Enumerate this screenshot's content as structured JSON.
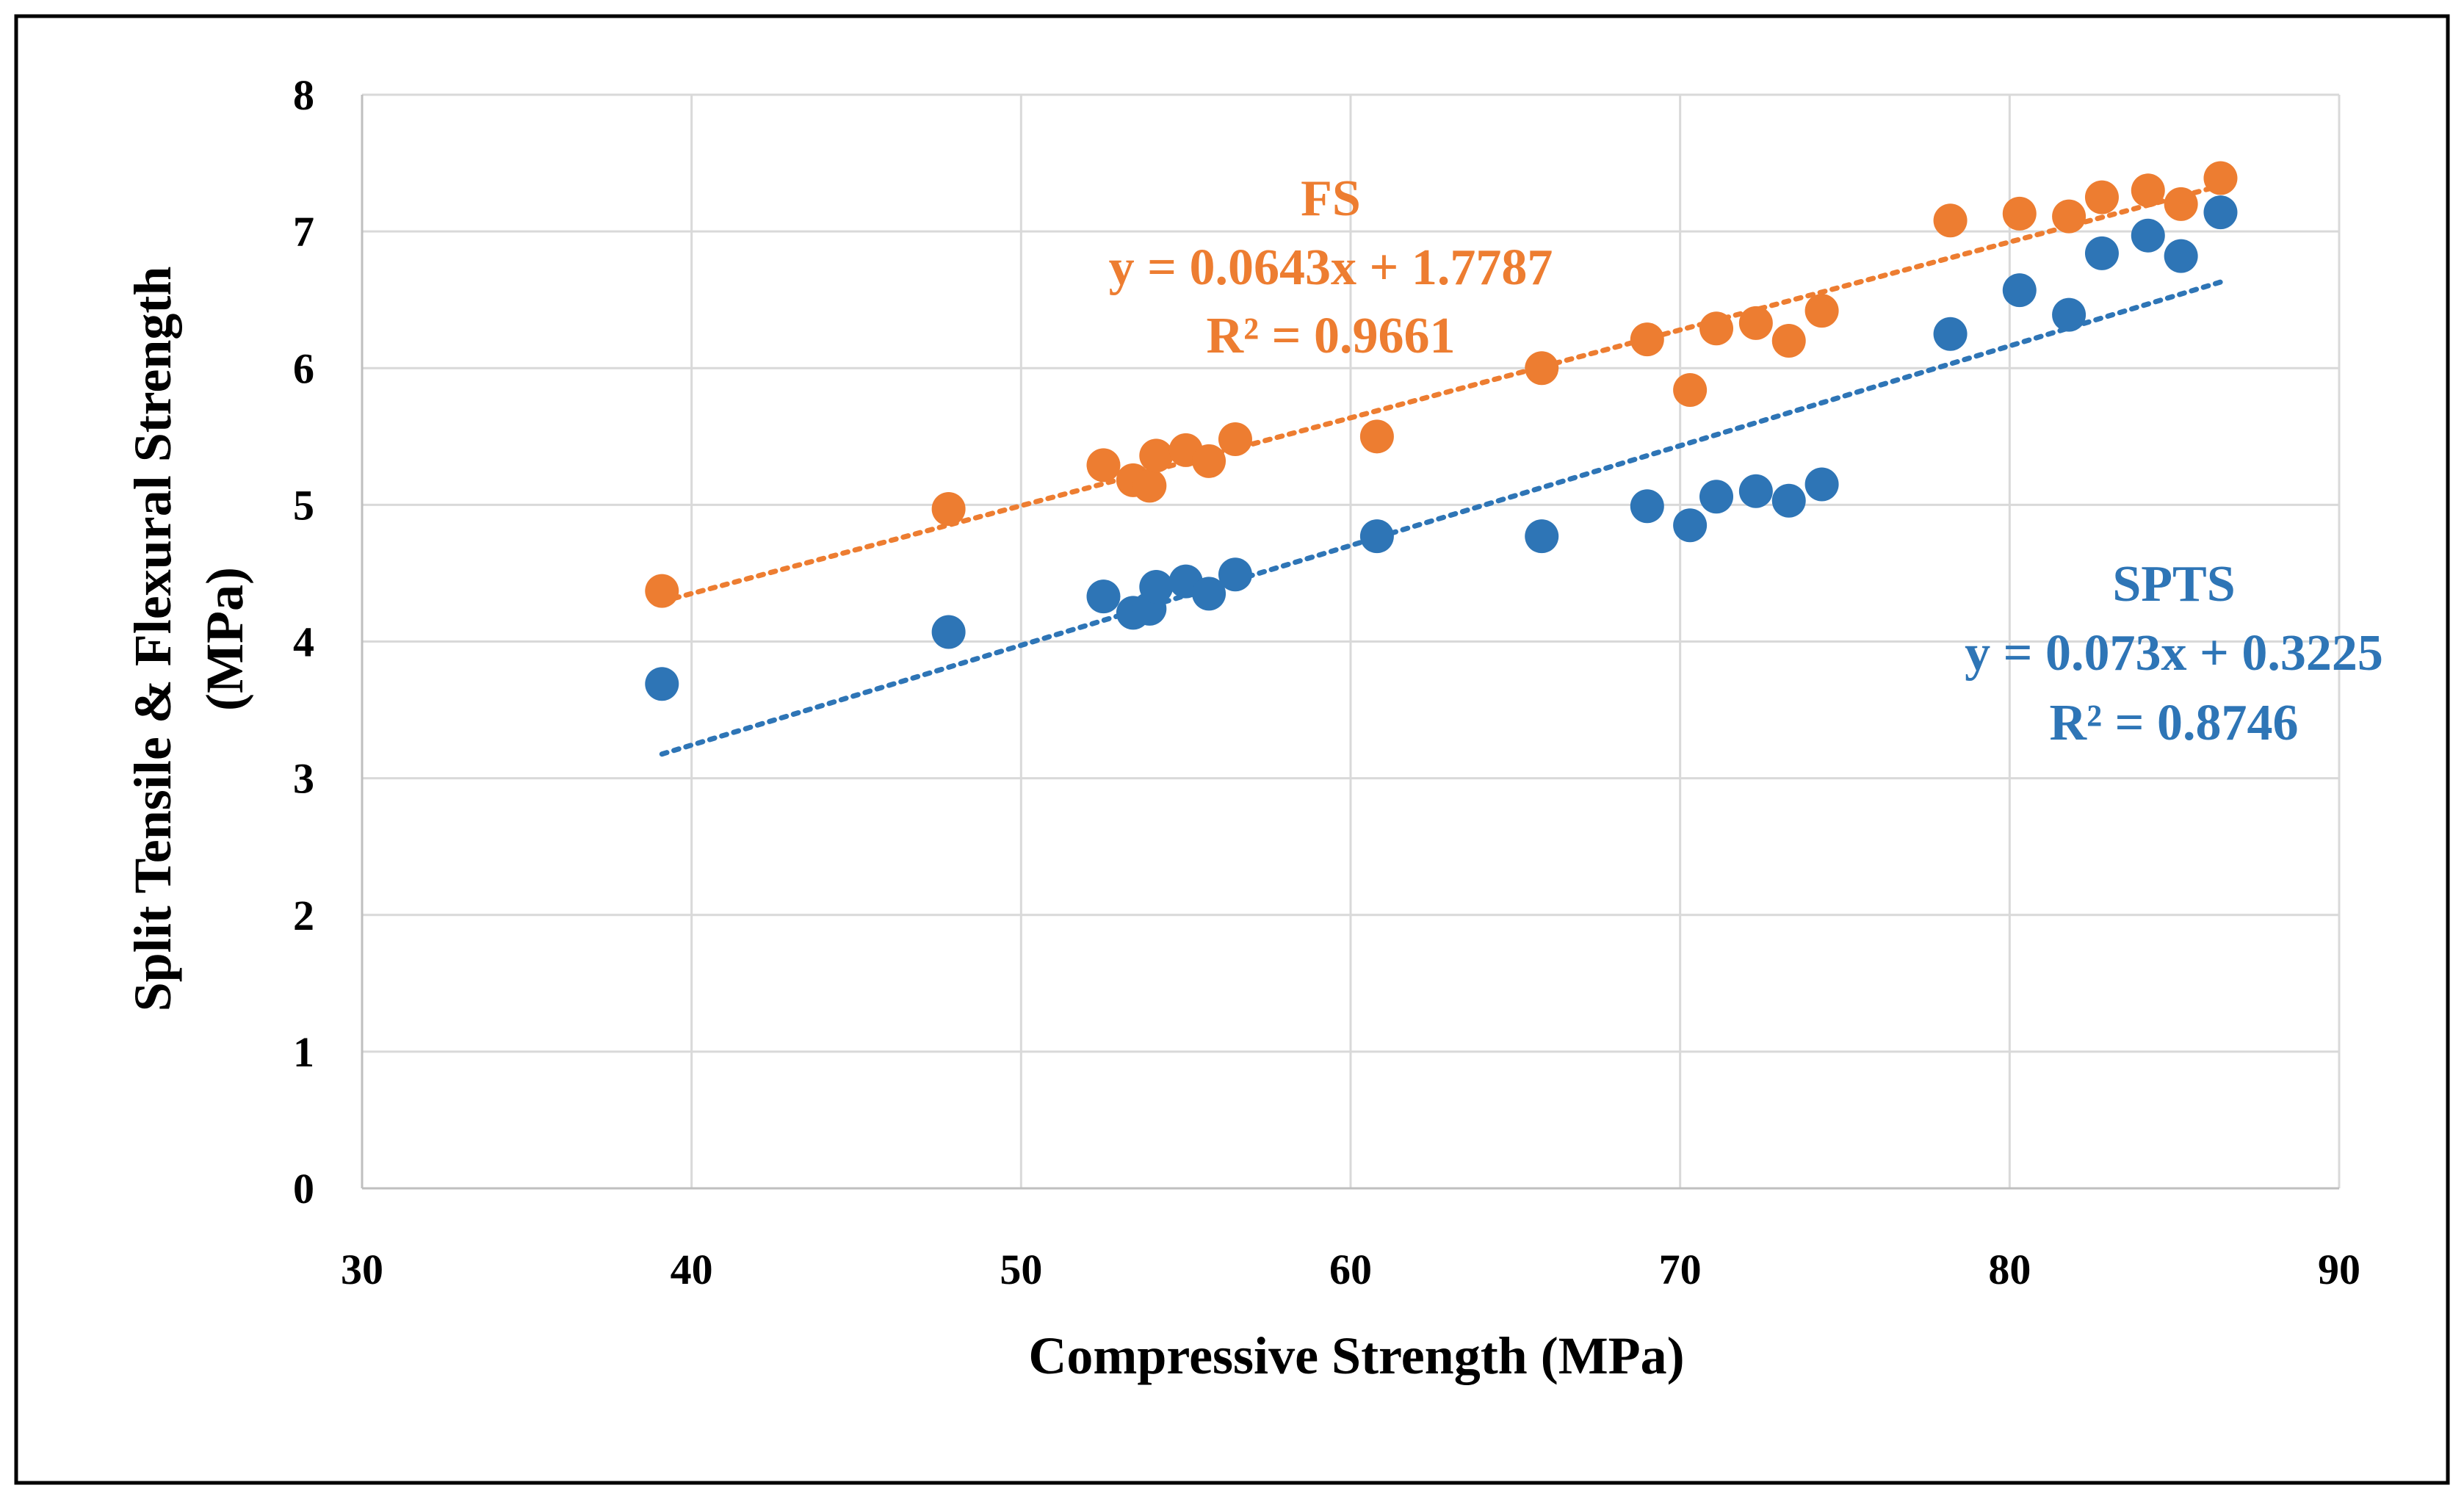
{
  "chart_data": {
    "type": "scatter",
    "title": "",
    "xlabel": "Compressive Strength (MPa)",
    "ylabel_line1": "Split Tensile  & Flexural Strength",
    "ylabel_line2": "(MPa)",
    "xlim": [
      30,
      90
    ],
    "ylim": [
      0,
      8
    ],
    "xticks": [
      30,
      40,
      50,
      60,
      70,
      80,
      90
    ],
    "yticks": [
      0,
      1,
      2,
      3,
      4,
      5,
      6,
      7,
      8
    ],
    "x_tick_labels": [
      "30",
      "40",
      "50",
      "60",
      "70",
      "80",
      "90"
    ],
    "y_tick_labels": [
      "0",
      "1",
      "2",
      "3",
      "4",
      "5",
      "6",
      "7",
      "8"
    ],
    "grid": true,
    "series": [
      {
        "name": "FS",
        "color": "#ED7D31",
        "x": [
          39.1,
          47.8,
          52.5,
          53.4,
          53.9,
          54.1,
          55.0,
          55.7,
          56.5,
          60.8,
          65.8,
          69.0,
          70.3,
          71.1,
          72.3,
          73.3,
          74.3,
          78.2,
          80.3,
          81.8,
          82.8,
          84.2,
          85.2,
          86.4
        ],
        "y": [
          4.37,
          4.97,
          5.29,
          5.18,
          5.14,
          5.36,
          5.4,
          5.32,
          5.48,
          5.5,
          6.0,
          6.21,
          5.84,
          6.29,
          6.33,
          6.2,
          6.42,
          7.08,
          7.13,
          7.11,
          7.25,
          7.3,
          7.2,
          7.39
        ],
        "trendline": {
          "x_start": 39.1,
          "x_end": 86.4,
          "slope": 0.0643,
          "intercept": 1.7787
        },
        "annotation": {
          "label": "FS",
          "equation": "y = 0.0643x + 1.7787",
          "r2": "R² = 0.9661"
        }
      },
      {
        "name": "SPTS",
        "color": "#2E75B6",
        "x": [
          39.1,
          47.8,
          52.5,
          53.4,
          53.9,
          54.1,
          55.0,
          55.7,
          56.5,
          60.8,
          65.8,
          69.0,
          70.3,
          71.1,
          72.3,
          73.3,
          74.3,
          78.2,
          80.3,
          81.8,
          82.8,
          84.2,
          85.2,
          86.4
        ],
        "y": [
          3.69,
          4.07,
          4.33,
          4.21,
          4.24,
          4.4,
          4.44,
          4.35,
          4.49,
          4.77,
          4.77,
          4.99,
          4.85,
          5.06,
          5.1,
          5.03,
          5.15,
          6.25,
          6.57,
          6.39,
          6.84,
          6.97,
          6.82,
          7.14
        ],
        "trendline": {
          "x_start": 39.1,
          "x_end": 86.4,
          "slope": 0.073,
          "intercept": 0.3225
        },
        "annotation": {
          "label": "SPTS",
          "equation": "y = 0.073x + 0.3225",
          "r2": "R² = 0.8746"
        }
      }
    ]
  }
}
